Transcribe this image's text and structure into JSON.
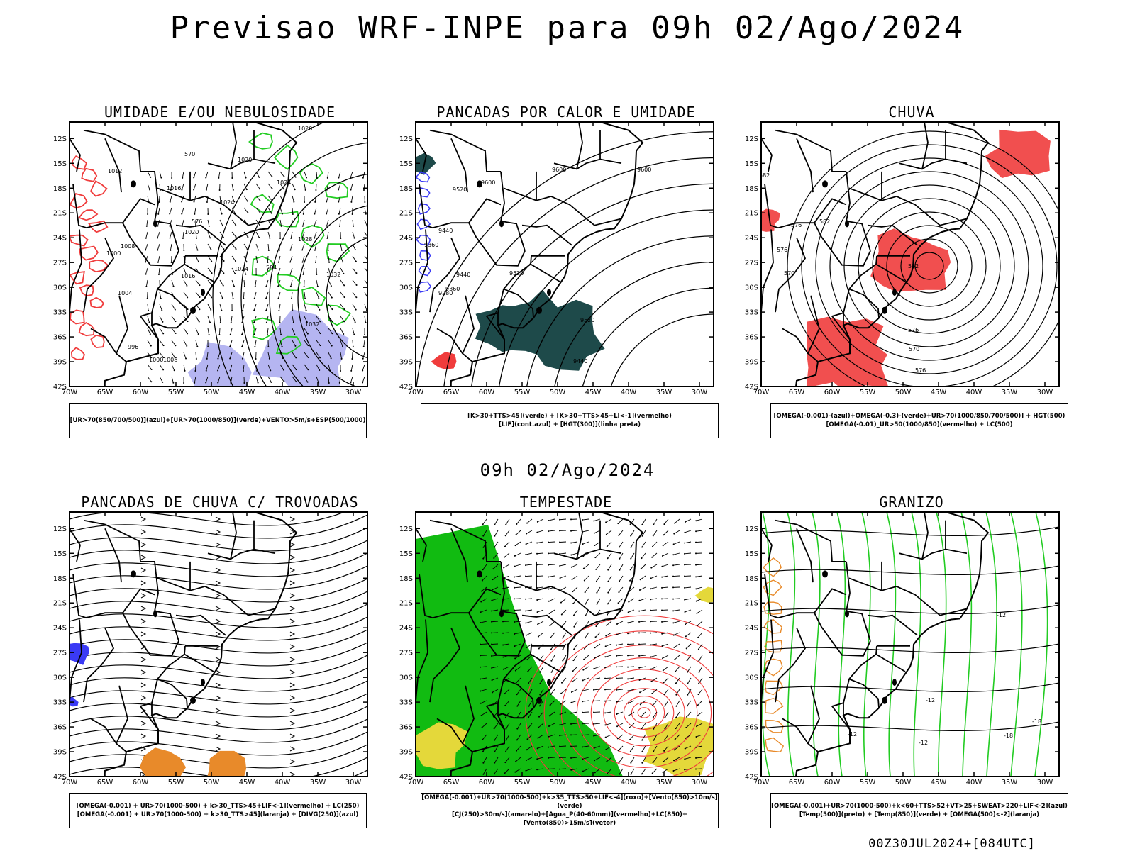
{
  "page": {
    "title": "Previsao WRF-INPE  para 09h 02/Ago/2024",
    "mid_date": "09h 02/Ago/2024",
    "footer": "00Z30JUL2024+[084UTC]"
  },
  "axes": {
    "lat_ticks": [
      "12S",
      "15S",
      "18S",
      "21S",
      "24S",
      "27S",
      "30S",
      "33S",
      "36S",
      "39S",
      "42S"
    ],
    "lon_ticks": [
      "70W",
      "65W",
      "60W",
      "55W",
      "50W",
      "45W",
      "40W",
      "35W",
      "30W"
    ]
  },
  "colors": {
    "green": "#22cc22",
    "red": "#f03c3c",
    "blue": "#3a3af5",
    "lavender": "#a8a8ee",
    "orange": "#e88a2a",
    "yellow": "#e4d83a",
    "darkteal": "#1e4a4a",
    "bright_green": "#11bb11"
  },
  "panels": [
    {
      "title": "UMIDADE E/OU NEBULOSIDADE",
      "legend": [
        "[UR>70(850/700/500)](azul)+[UR>70(1000/850)](verde)+VENTO>5m/s+ESP(500/1000)"
      ],
      "labels": [
        "1020",
        "1012",
        "1016",
        "1020",
        "1024",
        "1020",
        "1024",
        "1016",
        "1024",
        "1028",
        "1032",
        "1032",
        "1008",
        "1000",
        "1004",
        "996",
        "1000",
        "1008",
        "570",
        "584",
        "576"
      ]
    },
    {
      "title": "PANCADAS POR CALOR E UMIDADE",
      "legend": [
        "[K>30+TTS>45](verde) + [K>30+TTS>45+LI<-1](vermelho)",
        "[LIF](cont.azul) + [HGT(300)](linha preta)"
      ],
      "labels": [
        "9600",
        "9600",
        "9520",
        "9600",
        "9440",
        "9360",
        "9440",
        "9520",
        "9280",
        "9360",
        "9520",
        "9440"
      ]
    },
    {
      "title": "CHUVA",
      "legend": [
        "[OMEGA(-0.001)-(azul)+OMEGA(-0.3)-(verde)+UR>70(1000/850/700/500)] + HGT(500)",
        "[OMEGA(-0.01)_UR>50(1000/850)(vermelho) + LC(500)"
      ],
      "labels": [
        "582",
        "576",
        "582",
        "576",
        "570",
        "582",
        "576",
        "570",
        "576"
      ]
    },
    {
      "title": "PANCADAS DE CHUVA C/ TROVOADAS",
      "legend": [
        "[OMEGA(-0.001) + UR>70(1000-500) + k>30_TTS>45+LIF<-1](vermelho) + LC(250)",
        "[OMEGA(-0.001) + UR>70(1000-500) + k>30_TTS>45](laranja) + [DIVG(250)](azul)"
      ],
      "labels": []
    },
    {
      "title": "TEMPESTADE",
      "legend": [
        "[OMEGA(-0.001)+UR>70(1000-500)+k>35_TTS>50+LIF<-4](roxo)+[Vento(850)>10m/s](verde)",
        "[CJ(250)>30m/s](amarelo)+[Agua_P(40-60mm)](vermelho)+LC(850)+[Vento(850)>15m/s](vetor)"
      ],
      "labels": []
    },
    {
      "title": "GRANIZO",
      "legend": [
        "[OMEGA(-0.001)+UR>70(1000-500)+k<60+TTS>52+VT>25+SWEAT>220+LIF<-2](azul)",
        "[Temp(500)](preto) + [Temp(850)](verde) + [OMEGA(500)<-2](laranja)"
      ],
      "labels": [
        "-12",
        "-12",
        "-18",
        "-12",
        "-12",
        "-18"
      ]
    }
  ]
}
